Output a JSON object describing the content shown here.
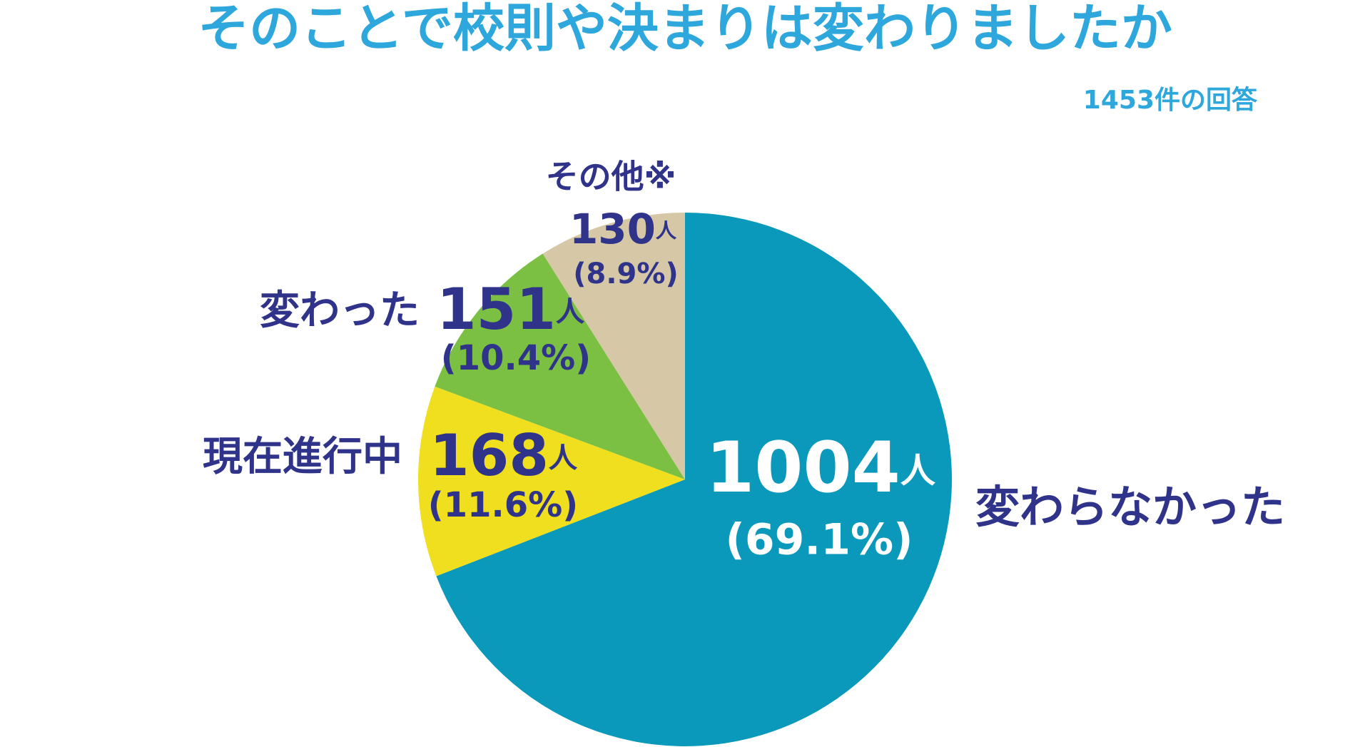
{
  "chart_data": {
    "type": "pie",
    "title": "そのことで校則や決まりは変わりましたか",
    "subtitle": "1453件の回答",
    "unit": "人",
    "categories": [
      "変わらなかった",
      "現在進行中",
      "変わった",
      "その他※"
    ],
    "values": [
      1004,
      168,
      151,
      130
    ],
    "percent_labels": [
      "(69.1%)",
      "(11.6%)",
      "(10.4%)",
      "(8.9%)"
    ],
    "colors": [
      "#0a98bb",
      "#f0df1e",
      "#7bc043",
      "#d6c8a6"
    ]
  }
}
